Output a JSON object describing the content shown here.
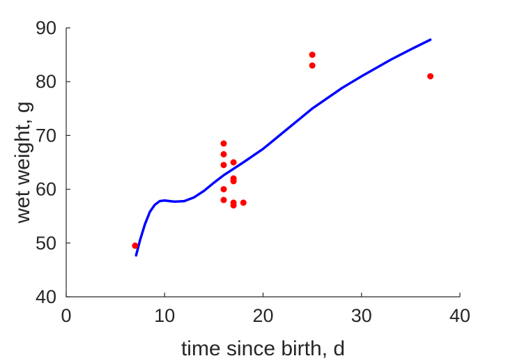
{
  "chart_data": {
    "type": "scatter",
    "title": "",
    "xlabel": "time since birth, d",
    "ylabel": "wet weight, g",
    "xlim": [
      0,
      40
    ],
    "ylim": [
      40,
      90
    ],
    "xticks": [
      0,
      10,
      20,
      30,
      40
    ],
    "yticks": [
      40,
      50,
      60,
      70,
      80,
      90
    ],
    "grid": false,
    "series": [
      {
        "kind": "scatter",
        "color": "#ff0000",
        "points": [
          {
            "x": 7,
            "y": 49.5
          },
          {
            "x": 16,
            "y": 68.5
          },
          {
            "x": 16,
            "y": 66.5
          },
          {
            "x": 16,
            "y": 64.5
          },
          {
            "x": 16,
            "y": 60
          },
          {
            "x": 16,
            "y": 58
          },
          {
            "x": 17,
            "y": 65
          },
          {
            "x": 17,
            "y": 62
          },
          {
            "x": 17,
            "y": 61.5
          },
          {
            "x": 17,
            "y": 57.5
          },
          {
            "x": 17,
            "y": 57
          },
          {
            "x": 18,
            "y": 57.5
          },
          {
            "x": 25,
            "y": 85
          },
          {
            "x": 25,
            "y": 83
          },
          {
            "x": 37,
            "y": 81
          }
        ]
      },
      {
        "kind": "line",
        "color": "#0000ff",
        "points": [
          {
            "x": 7.1,
            "y": 47.7
          },
          {
            "x": 7.5,
            "y": 50.5
          },
          {
            "x": 8,
            "y": 53.5
          },
          {
            "x": 8.5,
            "y": 55.8
          },
          {
            "x": 9,
            "y": 57.1
          },
          {
            "x": 9.5,
            "y": 57.8
          },
          {
            "x": 10,
            "y": 57.9
          },
          {
            "x": 10.5,
            "y": 57.8
          },
          {
            "x": 11,
            "y": 57.7
          },
          {
            "x": 12,
            "y": 57.8
          },
          {
            "x": 13,
            "y": 58.5
          },
          {
            "x": 14,
            "y": 59.7
          },
          {
            "x": 15,
            "y": 61.2
          },
          {
            "x": 16,
            "y": 62.6
          },
          {
            "x": 17,
            "y": 63.8
          },
          {
            "x": 18,
            "y": 65.0
          },
          {
            "x": 20,
            "y": 67.5
          },
          {
            "x": 22,
            "y": 70.5
          },
          {
            "x": 25,
            "y": 75.0
          },
          {
            "x": 28,
            "y": 78.8
          },
          {
            "x": 30,
            "y": 81.0
          },
          {
            "x": 33,
            "y": 84.1
          },
          {
            "x": 35,
            "y": 86.0
          },
          {
            "x": 37,
            "y": 87.8
          }
        ]
      }
    ]
  }
}
